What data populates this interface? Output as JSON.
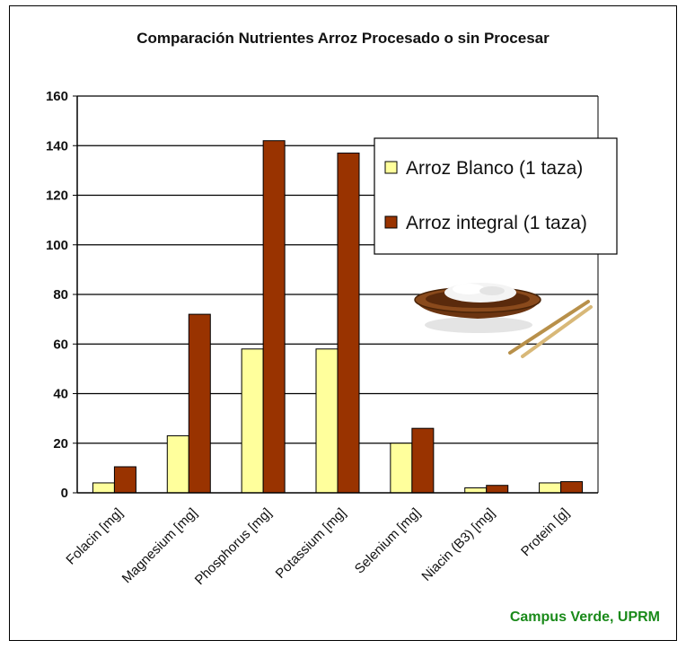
{
  "chart_data": {
    "type": "bar",
    "title": "Comparación Nutrientes Arroz Procesado o sin Procesar",
    "categories": [
      "Folacin [mg]",
      "Magnesium [mg]",
      "Phosphorus [mg]",
      "Potassium [mg]",
      "Selenium [mg]",
      "Niacin (B3) [mg]",
      "Protein [g]"
    ],
    "series": [
      {
        "name": "Arroz Blanco (1 taza)",
        "color": "#ffff9c",
        "values": [
          4,
          23,
          58,
          58,
          20,
          2,
          4
        ]
      },
      {
        "name": "Arroz integral (1 taza)",
        "color": "#993300",
        "values": [
          10.5,
          72,
          142,
          137,
          26,
          3,
          4.5
        ]
      }
    ],
    "ylim": [
      0,
      160
    ],
    "yticks": [
      0,
      20,
      40,
      60,
      80,
      100,
      120,
      140,
      160
    ],
    "grid": true,
    "legend_position": "top-right",
    "xlabel": "",
    "ylabel": ""
  },
  "credit": {
    "text": "Campus Verde, UPRM",
    "color": "#1a8a1a"
  },
  "decoration": {
    "image_name": "rice-bowl-chopsticks-icon"
  }
}
